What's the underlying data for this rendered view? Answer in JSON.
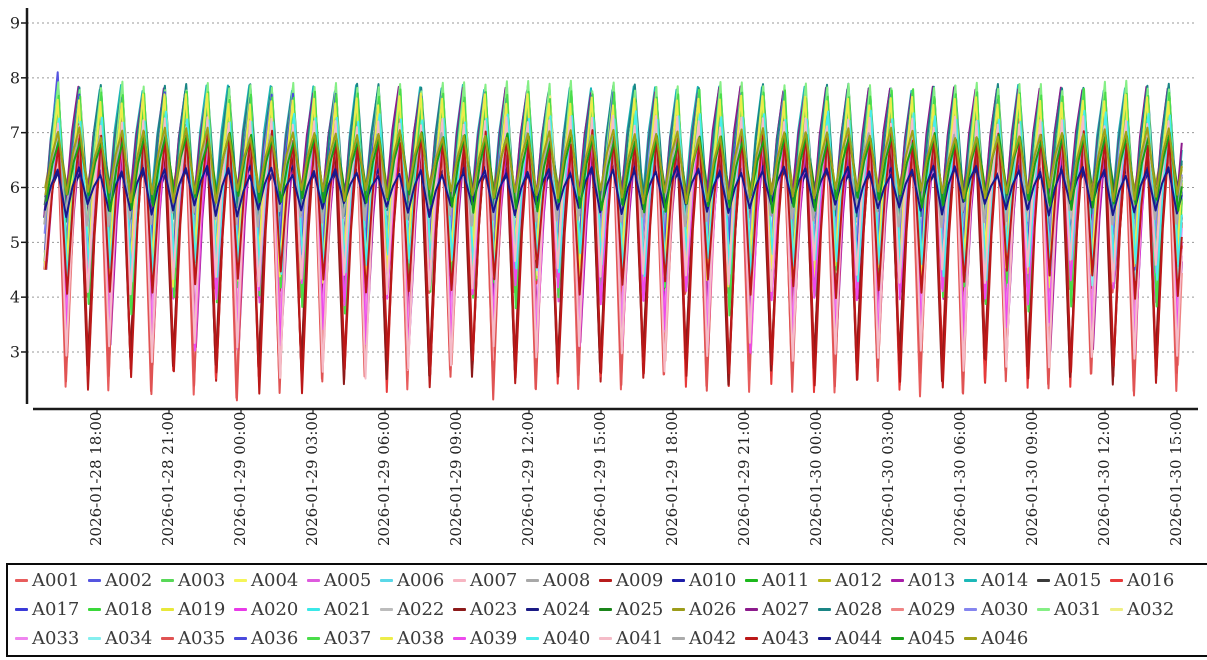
{
  "chart_data": {
    "type": "line",
    "title": "",
    "ylabel": "",
    "xlabel": "",
    "grid": "horizontal-dashed",
    "legend_position": "bottom",
    "ylim": [
      2.0,
      9.3
    ],
    "y_ticks": [
      3,
      4,
      5,
      6,
      7,
      8,
      9
    ],
    "x_tick_labels": [
      "2026-01-28 18:00",
      "2026-01-28 21:00",
      "2026-01-29 00:00",
      "2026-01-29 03:00",
      "2026-01-29 06:00",
      "2026-01-29 09:00",
      "2026-01-29 12:00",
      "2026-01-29 15:00",
      "2026-01-29 18:00",
      "2026-01-29 21:00",
      "2026-01-30 00:00",
      "2026-01-30 03:00",
      "2026-01-30 06:00",
      "2026-01-30 09:00",
      "2026-01-30 12:00",
      "2026-01-30 15:00"
    ],
    "x_hours_start": -2.2,
    "x_hours_end": 45.2,
    "waveform": {
      "shape": "sawtooth",
      "cycle_hours": 0.89,
      "rise_frac": 0.6,
      "rise_mid_frac": 0.62,
      "start_floor": 4.5,
      "seed": 20260128,
      "note": "all 46 series oscillate in phase-aligned sawtooth cycles between their low and high bands; deep-spike series alternate deep/shallow lows every other cycle"
    },
    "series": [
      {
        "n": "A001",
        "c": "#e85d5d",
        "lo": 2.45,
        "lo2": 4.35,
        "alt": 1,
        "hi": 7.25,
        "jl": 0.3,
        "jh": 0.12,
        "ph": 0.0
      },
      {
        "n": "A002",
        "c": "#5555e0",
        "lo": 4.8,
        "hi": 7.6,
        "jl": 0.25,
        "jh": 0.15,
        "ph": 0.03,
        "fh": 8.1
      },
      {
        "n": "A003",
        "c": "#58d858",
        "lo": 4.35,
        "hi": 7.7,
        "jl": 0.35,
        "jh": 0.1,
        "ph": 0.06
      },
      {
        "n": "A004",
        "c": "#f5f558",
        "lo": 4.45,
        "hi": 7.6,
        "jl": 0.3,
        "jh": 0.12,
        "ph": 0.01
      },
      {
        "n": "A005",
        "c": "#de5ade",
        "lo": 3.25,
        "lo2": 4.2,
        "alt": 1,
        "hi": 7.05,
        "jl": 0.3,
        "jh": 0.15,
        "ph": 0.08
      },
      {
        "n": "A006",
        "c": "#5ad8e8",
        "lo": 4.55,
        "hi": 7.35,
        "jl": 0.3,
        "jh": 0.12,
        "ph": 0.04
      },
      {
        "n": "A007",
        "c": "#f7b5c2",
        "lo": 2.9,
        "lo2": 4.45,
        "alt": 1,
        "hi": 7.2,
        "jl": 0.35,
        "jh": 0.12,
        "ph": 0.02
      },
      {
        "n": "A008",
        "c": "#a8a8a8",
        "lo": 5.45,
        "hi": 6.9,
        "jl": 0.2,
        "jh": 0.12,
        "ph": 0.07
      },
      {
        "n": "A009",
        "c": "#b81c1c",
        "lo": 2.6,
        "lo2": 4.3,
        "alt": 0,
        "hi": 6.9,
        "jl": 0.3,
        "jh": 0.15,
        "ph": 0.05
      },
      {
        "n": "A010",
        "c": "#1c1ca8",
        "lo": 5.6,
        "hi": 6.35,
        "jl": 0.15,
        "jh": 0.1,
        "ph": 0.09
      },
      {
        "n": "A011",
        "c": "#1cb81c",
        "lo": 5.7,
        "hi": 6.9,
        "jl": 0.18,
        "jh": 0.1,
        "ph": 0.02
      },
      {
        "n": "A012",
        "c": "#b8b81c",
        "lo": 5.85,
        "hi": 7.0,
        "jl": 0.15,
        "jh": 0.1,
        "ph": 0.06
      },
      {
        "n": "A013",
        "c": "#a81ca8",
        "lo": 3.3,
        "lo2": 4.25,
        "alt": 1,
        "hi": 6.9,
        "jl": 0.3,
        "jh": 0.12,
        "ph": 0.1
      },
      {
        "n": "A014",
        "c": "#1cb8b8",
        "lo": 5.55,
        "hi": 7.8,
        "jl": 0.2,
        "jh": 0.08,
        "ph": 0.0
      },
      {
        "n": "A015",
        "c": "#3a3a3a",
        "lo": 5.65,
        "hi": 7.1,
        "jl": 0.18,
        "jh": 0.1,
        "ph": 0.05
      },
      {
        "n": "A016",
        "c": "#e83a3a",
        "lo": 2.55,
        "lo2": 4.4,
        "alt": 0,
        "hi": 7.2,
        "jl": 0.3,
        "jh": 0.12,
        "ph": 0.04
      },
      {
        "n": "A017",
        "c": "#3a3ad8",
        "lo": 4.85,
        "hi": 7.55,
        "jl": 0.25,
        "jh": 0.15,
        "ph": 0.07
      },
      {
        "n": "A018",
        "c": "#3ad83a",
        "lo": 4.4,
        "hi": 7.65,
        "jl": 0.3,
        "jh": 0.1,
        "ph": 0.02
      },
      {
        "n": "A019",
        "c": "#e8e83a",
        "lo": 4.5,
        "hi": 7.55,
        "jl": 0.28,
        "jh": 0.12,
        "ph": 0.09
      },
      {
        "n": "A020",
        "c": "#e83ae8",
        "lo": 3.3,
        "lo2": 4.2,
        "alt": 1,
        "hi": 7.0,
        "jl": 0.3,
        "jh": 0.12,
        "ph": 0.05
      },
      {
        "n": "A021",
        "c": "#3ae8e8",
        "lo": 4.6,
        "hi": 7.3,
        "jl": 0.28,
        "jh": 0.12,
        "ph": 0.01
      },
      {
        "n": "A022",
        "c": "#bcbcbc",
        "lo": 5.5,
        "hi": 6.85,
        "jl": 0.18,
        "jh": 0.1,
        "ph": 0.08
      },
      {
        "n": "A023",
        "c": "#8c1a1a",
        "lo": 2.7,
        "lo2": 4.35,
        "alt": 0,
        "hi": 6.8,
        "jl": 0.3,
        "jh": 0.15,
        "ph": 0.03
      },
      {
        "n": "A024",
        "c": "#1a1a85",
        "lo": 5.65,
        "hi": 6.3,
        "jl": 0.12,
        "jh": 0.1,
        "ph": 0.06
      },
      {
        "n": "A025",
        "c": "#1a851a",
        "lo": 5.75,
        "hi": 6.95,
        "jl": 0.15,
        "jh": 0.1,
        "ph": 0.1
      },
      {
        "n": "A026",
        "c": "#9c9c1a",
        "lo": 5.9,
        "hi": 7.05,
        "jl": 0.15,
        "jh": 0.1,
        "ph": 0.04
      },
      {
        "n": "A027",
        "c": "#8c1a8c",
        "lo": 5.6,
        "hi": 7.75,
        "jl": 0.2,
        "jh": 0.1,
        "ph": 0.0
      },
      {
        "n": "A028",
        "c": "#1a8585",
        "lo": 5.55,
        "hi": 7.82,
        "jl": 0.18,
        "jh": 0.08,
        "ph": 0.05
      },
      {
        "n": "A029",
        "c": "#ef8585",
        "lo": 3.05,
        "lo2": 4.5,
        "alt": 1,
        "hi": 7.3,
        "jl": 0.3,
        "jh": 0.12,
        "ph": 0.08
      },
      {
        "n": "A030",
        "c": "#8585ef",
        "lo": 4.95,
        "hi": 7.5,
        "jl": 0.25,
        "jh": 0.12,
        "ph": 0.02
      },
      {
        "n": "A031",
        "c": "#85ef85",
        "lo": 4.65,
        "hi": 7.85,
        "jl": 0.3,
        "jh": 0.1,
        "ph": 0.06
      },
      {
        "n": "A032",
        "c": "#efef85",
        "lo": 4.55,
        "hi": 7.55,
        "jl": 0.28,
        "jh": 0.12,
        "ph": 0.09
      },
      {
        "n": "A033",
        "c": "#ef85ef",
        "lo": 3.4,
        "lo2": 4.4,
        "alt": 1,
        "hi": 7.1,
        "jl": 0.3,
        "jh": 0.12,
        "ph": 0.01
      },
      {
        "n": "A034",
        "c": "#85efef",
        "lo": 4.45,
        "hi": 7.3,
        "jl": 0.28,
        "jh": 0.12,
        "ph": 0.07
      },
      {
        "n": "A035",
        "c": "#e05353",
        "lo": 2.4,
        "lo2": 4.3,
        "alt": 1,
        "hi": 7.25,
        "jl": 0.3,
        "jh": 0.12,
        "ph": 0.02
      },
      {
        "n": "A036",
        "c": "#4a4add",
        "lo": 4.75,
        "hi": 7.6,
        "jl": 0.25,
        "jh": 0.15,
        "ph": 0.05
      },
      {
        "n": "A037",
        "c": "#4add4a",
        "lo": 3.95,
        "lo2": 4.45,
        "alt": 0,
        "hi": 7.7,
        "jl": 0.3,
        "jh": 0.1,
        "ph": 0.08
      },
      {
        "n": "A038",
        "c": "#eded4a",
        "lo": 4.45,
        "hi": 7.6,
        "jl": 0.28,
        "jh": 0.12,
        "ph": 0.03
      },
      {
        "n": "A039",
        "c": "#ed4aed",
        "lo": 3.25,
        "lo2": 4.15,
        "alt": 1,
        "hi": 7.0,
        "jl": 0.3,
        "jh": 0.12,
        "ph": 0.06
      },
      {
        "n": "A040",
        "c": "#4aeded",
        "lo": 4.55,
        "hi": 7.3,
        "jl": 0.28,
        "jh": 0.12,
        "ph": 0.1
      },
      {
        "n": "A041",
        "c": "#f5bcc8",
        "lo": 2.85,
        "lo2": 4.4,
        "alt": 1,
        "hi": 7.2,
        "jl": 0.35,
        "jh": 0.12,
        "ph": 0.04
      },
      {
        "n": "A042",
        "c": "#ababab",
        "lo": 5.45,
        "hi": 6.9,
        "jl": 0.18,
        "jh": 0.1,
        "ph": 0.0
      },
      {
        "n": "A043",
        "c": "#bb1818",
        "lo": 2.55,
        "lo2": 4.25,
        "alt": 0,
        "hi": 6.9,
        "jl": 0.32,
        "jh": 0.15,
        "ph": 0.07
      },
      {
        "n": "A044",
        "c": "#18188f",
        "lo": 5.6,
        "hi": 6.3,
        "jl": 0.14,
        "jh": 0.1,
        "ph": 0.03
      },
      {
        "n": "A045",
        "c": "#18a018",
        "lo": 5.7,
        "hi": 6.9,
        "jl": 0.18,
        "jh": 0.1,
        "ph": 0.09
      },
      {
        "n": "A046",
        "c": "#a0a018",
        "lo": 5.85,
        "hi": 7.0,
        "jl": 0.15,
        "jh": 0.1,
        "ph": 0.05
      }
    ]
  },
  "legend": {
    "rows": [
      16,
      16,
      14
    ]
  },
  "colors": {
    "axis": "#1a1a1a",
    "grid": "#999999",
    "tick_label": "#222222",
    "legend_text": "#3b3b3b",
    "background": "#ffffff"
  }
}
